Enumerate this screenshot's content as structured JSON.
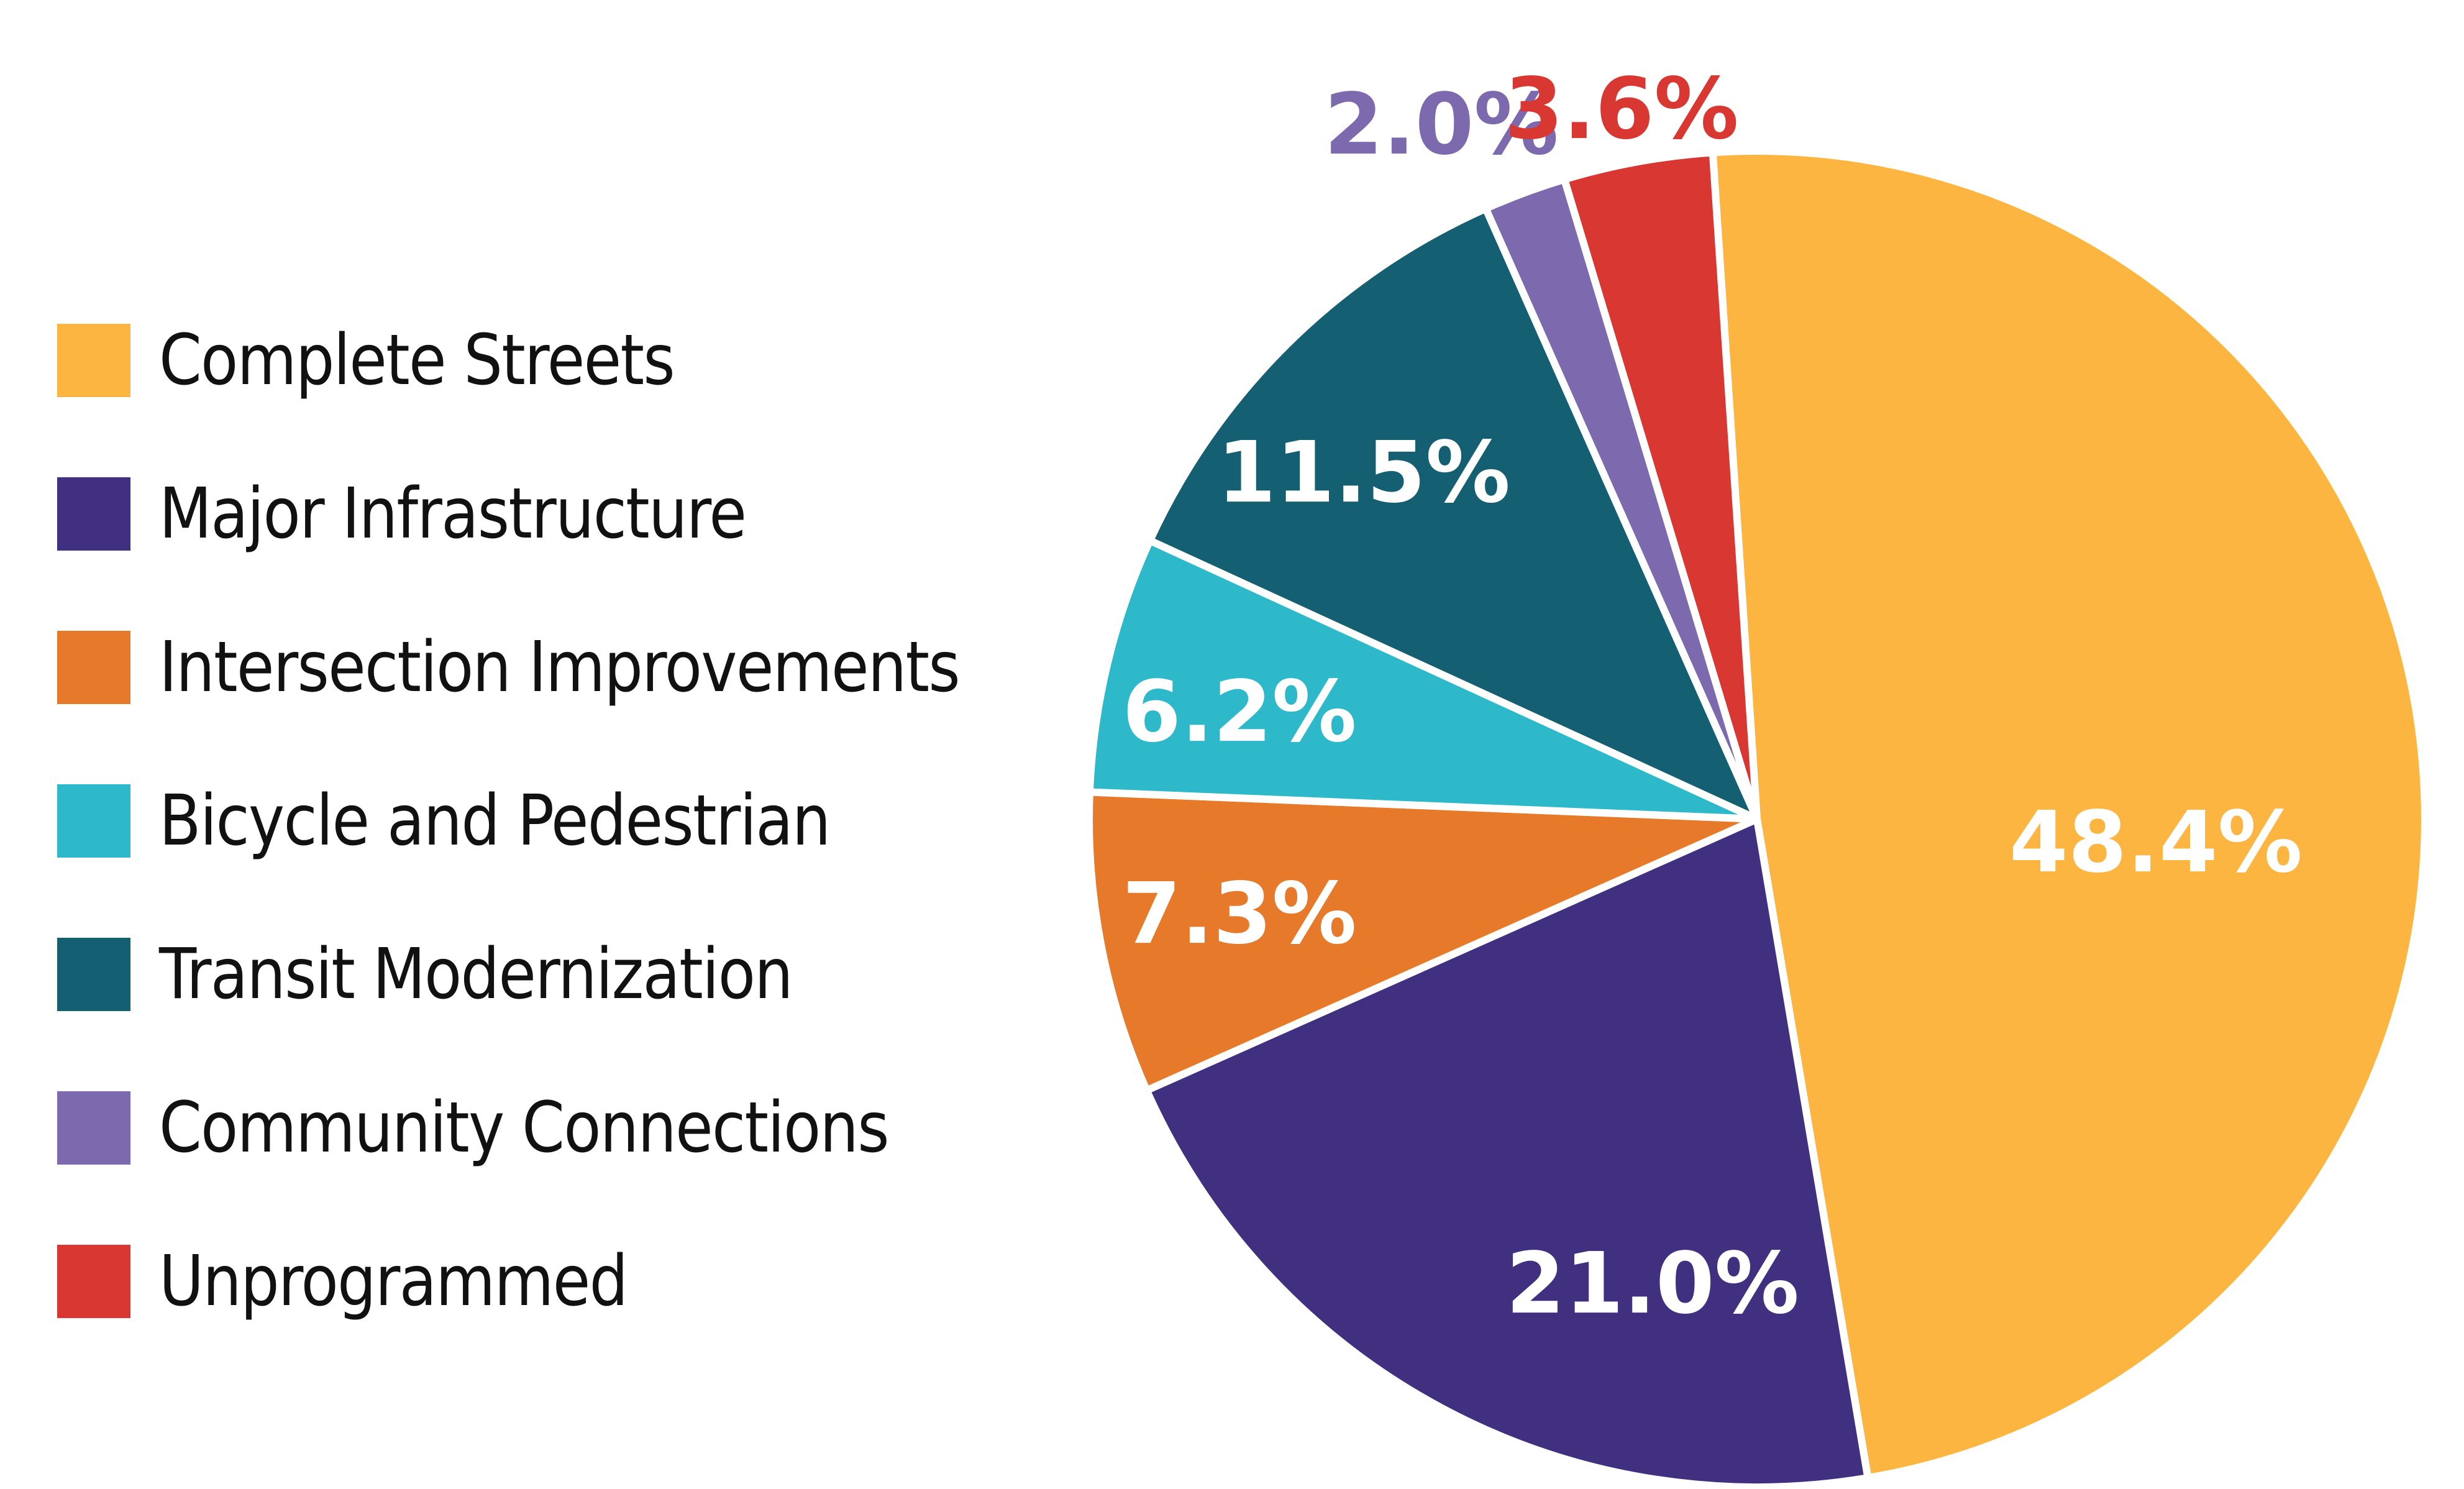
{
  "chart_data": {
    "type": "pie",
    "title": "",
    "start_angle_deg_clockwise_from_top": -3.8,
    "direction": "clockwise",
    "categories": [
      "Complete Streets",
      "Major Infrastructure",
      "Intersection Improvements",
      "Bicycle and Pedestrian",
      "Transit Modernization",
      "Community Connections",
      "Unprogrammed"
    ],
    "values": [
      48.4,
      21.0,
      7.3,
      6.2,
      11.5,
      2.0,
      3.6
    ],
    "labels": [
      "48.4%",
      "21.0%",
      "7.3%",
      "6.2%",
      "11.5%",
      "2.0%",
      "3.6%"
    ],
    "colors": [
      "#FBB540",
      "#412F80",
      "#E67A2A",
      "#2DB9C9",
      "#155F72",
      "#7D69AE",
      "#D93732"
    ],
    "label_colors": [
      "#FFFFFF",
      "#FFFFFF",
      "#FFFFFF",
      "#FFFFFF",
      "#FFFFFF",
      "#7D69AE",
      "#D93732"
    ],
    "label_outside": [
      false,
      false,
      false,
      false,
      false,
      true,
      true
    ],
    "legend_position": "left",
    "slice_separator_color": "#FFFFFF"
  },
  "legend": {
    "items": [
      {
        "label": "Complete Streets",
        "color": "#FBB540"
      },
      {
        "label": "Major Infrastructure",
        "color": "#412F80"
      },
      {
        "label": "Intersection Improvements",
        "color": "#E67A2A"
      },
      {
        "label": "Bicycle and Pedestrian",
        "color": "#2DB9C9"
      },
      {
        "label": "Transit Modernization",
        "color": "#155F72"
      },
      {
        "label": "Community Connections",
        "color": "#7D69AE"
      },
      {
        "label": "Unprogrammed",
        "color": "#D93732"
      }
    ]
  }
}
